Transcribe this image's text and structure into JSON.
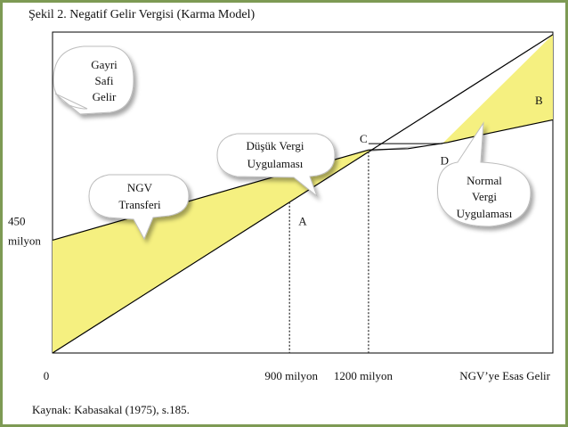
{
  "title": "Şekil 2. Negatif Gelir Vergisi (Karma Model)",
  "source": "Kaynak: Kabasakal (1975), s.185.",
  "colors": {
    "transfer_fill": "#f5f080",
    "overtax_fill": "#f5f080",
    "low_tax_fill": "#b4b4b4",
    "frame": "#7d9a54"
  },
  "chart_data": {
    "type": "area",
    "title": "Şekil 2. Negatif Gelir Vergisi (Karma Model)",
    "xlabel": "NGV’ye Esas Gelir",
    "ylabel": "",
    "xlim": [
      0,
      1900
    ],
    "ylim": [
      0,
      1280
    ],
    "x_ticks": [
      {
        "value": 0,
        "label": "0"
      },
      {
        "value": 900,
        "label": "900 milyon"
      },
      {
        "value": 1200,
        "label": "1200 milyon"
      }
    ],
    "y_ticks": [
      {
        "value": 450,
        "label": "450",
        "label2": "milyon"
      }
    ],
    "series": [
      {
        "name": "Gayri Safi Gelir",
        "points": [
          [
            0,
            0
          ],
          [
            1900,
            1270
          ]
        ]
      },
      {
        "name": "Düşük Vergi Uygulaması",
        "points": [
          [
            0,
            450
          ],
          [
            1200,
            810
          ]
        ]
      },
      {
        "name": "Normal Vergi Uygulaması",
        "points": [
          [
            1200,
            810
          ],
          [
            1350,
            815
          ],
          [
            1500,
            840
          ],
          [
            1650,
            875
          ],
          [
            1900,
            930
          ]
        ]
      }
    ],
    "regions": [
      {
        "name": "NGV Transferi",
        "color": "#f5f080"
      },
      {
        "name": "Düşük Vergi Uygulaması",
        "color": "#b4b4b4"
      },
      {
        "name": "Normal Vergi Uygulaması",
        "color": "#f5f080"
      }
    ],
    "points": [
      {
        "label": "A",
        "x": 900,
        "y": 600
      },
      {
        "label": "C",
        "x": 1200,
        "y": 810
      },
      {
        "label": "D",
        "x": 1500,
        "y": 830
      },
      {
        "label": "B",
        "x": 1900,
        "y": 950
      }
    ],
    "callouts": [
      {
        "name": "gross-income",
        "lines": [
          "Gayri",
          "Safi",
          "Gelir"
        ]
      },
      {
        "name": "ngv-transfer",
        "lines": [
          "NGV",
          "Transferi"
        ]
      },
      {
        "name": "low-tax",
        "lines": [
          "Düşük Vergi",
          "Uygulaması"
        ]
      },
      {
        "name": "normal-tax",
        "lines": [
          "Normal",
          "Vergi",
          "Uygulaması"
        ]
      }
    ]
  }
}
